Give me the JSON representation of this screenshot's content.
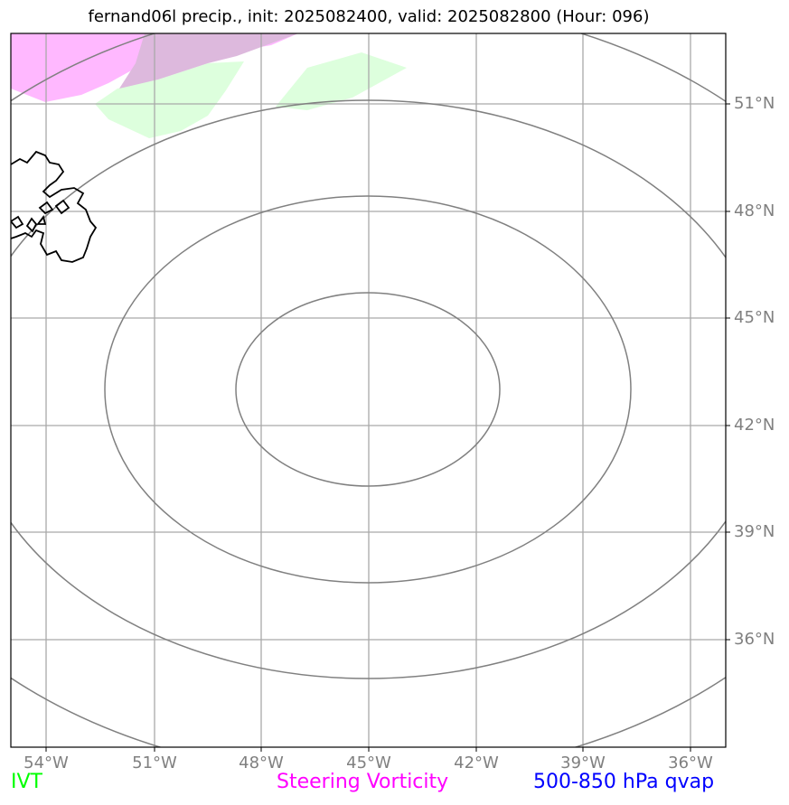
{
  "title": "fernand06l precip., init: 2025082400, valid: 2025082800 (Hour: 096)",
  "lon_labels": [
    "54°W",
    "51°W",
    "48°W",
    "45°W",
    "42°W",
    "39°W",
    "36°W"
  ],
  "lat_labels": [
    "51°N",
    "48°N",
    "45°N",
    "42°N",
    "39°N",
    "36°N"
  ],
  "legend": {
    "ivt": "IVT",
    "steering": "Steering Vorticity",
    "qvap": "500-850 hPa qvap"
  },
  "colors": {
    "ivt": "#00ff00",
    "steering": "#ff00ff",
    "qvap": "#0000ff",
    "grid": "#a9a9a9",
    "contour": "#808080",
    "ivt_fill": "#ddffdd",
    "steering_fill": "#ffb8ff",
    "overlap_fill": "#ddb9dd",
    "coastline": "#000000"
  },
  "chart_data": {
    "type": "map",
    "extent": {
      "lon": [
        -55,
        -35
      ],
      "lat": [
        33,
        53
      ]
    },
    "gridlines_lon": [
      -54,
      -51,
      -48,
      -45,
      -42,
      -39,
      -36
    ],
    "gridlines_lat": [
      51,
      48,
      45,
      42,
      39,
      36
    ],
    "contours": "concentric closed isobars centered near 43°N 45°W",
    "shaded": [
      "steering vorticity (magenta) NW corner",
      "IVT (light green) near 51–53°N"
    ],
    "coastline": "Newfoundland (partial), west edge"
  }
}
